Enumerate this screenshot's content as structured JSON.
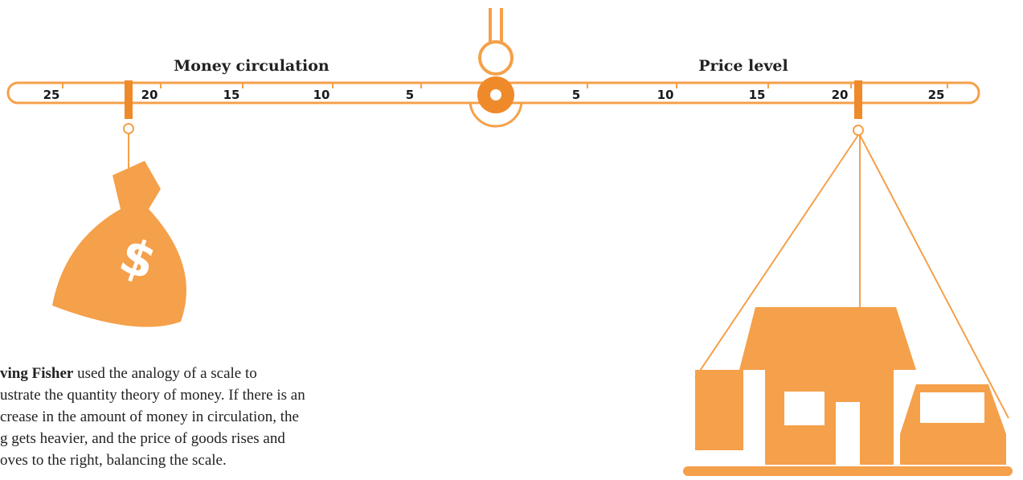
{
  "scale": {
    "left_title": "Money circulation",
    "right_title": "Price level",
    "left_ticks": [
      "25",
      "20",
      "15",
      "10",
      "5"
    ],
    "right_ticks": [
      "5",
      "10",
      "15",
      "20",
      "25"
    ]
  },
  "caption": {
    "bold": "ving Fisher",
    "lines": [
      " used the analogy of a scale to",
      "ustrate the quantity theory of money. If there is an",
      "crease in the amount of money in circulation, the",
      "g gets heavier, and the price of goods rises and",
      "oves to the right, balancing the scale."
    ]
  }
}
